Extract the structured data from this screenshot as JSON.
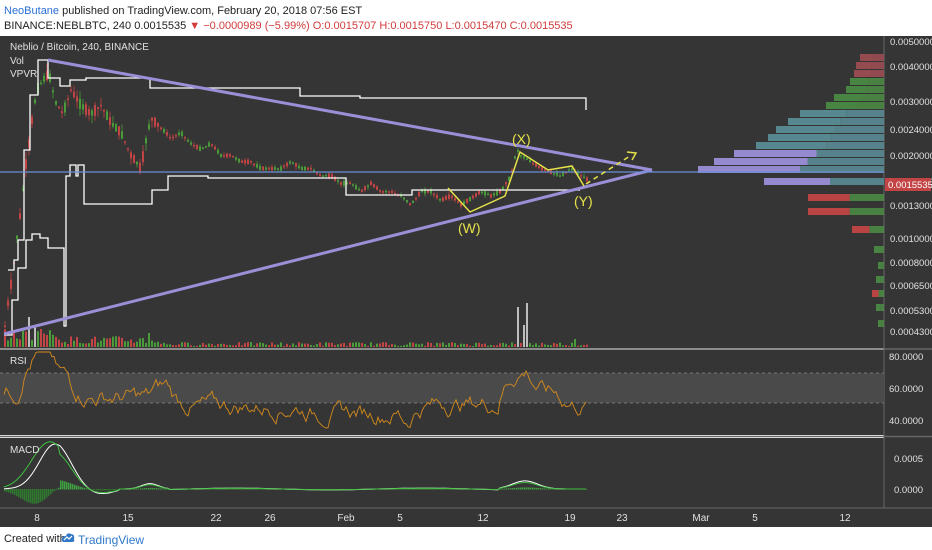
{
  "header": {
    "author": "NeoButane",
    "published": " published on TradingView.com, February 20, 2018 07:56 EST",
    "symbol": "BINANCE:NEBLBTC, 240",
    "last": "0.0015535",
    "change": "−0.0000989 (−5.99%)",
    "ohlc": "O:0.0015707 H:0.0015750 L:0.0015470 C:0.0015535"
  },
  "legend": {
    "title": "Neblio / Bitcoin, 240, BINANCE",
    "vol": "Vol",
    "vpvr": "VPVR"
  },
  "price_axis": {
    "ticks": [
      "0.0050000",
      "0.0040000",
      "0.0030000",
      "0.0024000",
      "0.0020000",
      "0.0016000",
      "0.0013000",
      "0.0010000",
      "0.0008000",
      "0.0006500",
      "0.0005300",
      "0.0004300"
    ],
    "current": "0.0015535",
    "log_scale": true
  },
  "rsi": {
    "label": "RSI",
    "ticks": [
      "80.0000",
      "60.0000",
      "40.0000"
    ],
    "band": [
      30,
      70
    ]
  },
  "macd": {
    "label": "MACD",
    "ticks": [
      "0.0005",
      "0.0000"
    ]
  },
  "time_axis": {
    "labels": [
      "8",
      "15",
      "22",
      "26",
      "Feb",
      "5",
      "12",
      "19",
      "23",
      "Mar",
      "5",
      "12"
    ]
  },
  "annotations": {
    "x": "(X)",
    "w": "(W)",
    "y": "(Y)"
  },
  "colors": {
    "background": "#353535",
    "up": "#4a9b3a",
    "down": "#c24444",
    "wedge": "#9b8fd8",
    "wave": "#e6e24a",
    "price_line": "#6b8fd8",
    "rsi": "#d28a1c",
    "macd": "#ffffff",
    "signal": "#3fc13f"
  },
  "footer": {
    "created": "Created with",
    "brand": "TradingView"
  },
  "chart_data": {
    "type": "line",
    "title": "Neblio / Bitcoin, 240, BINANCE",
    "series": [
      {
        "name": "NEBLBTC close",
        "x": [
          "Jan 5",
          "Jan 8",
          "Jan 10",
          "Jan 14",
          "Jan 17",
          "Jan 22",
          "Jan 26",
          "Feb 1",
          "Feb 5",
          "Feb 9",
          "Feb 11",
          "Feb 15",
          "Feb 17",
          "Feb 19",
          "Feb 20"
        ],
        "values": [
          0.00045,
          0.0038,
          0.0036,
          0.0021,
          0.0026,
          0.0019,
          0.0017,
          0.00155,
          0.00135,
          0.00145,
          0.0013,
          0.00195,
          0.00175,
          0.0016,
          0.0015535
        ]
      },
      {
        "name": "RSI",
        "x": [
          "Jan 5",
          "Jan 8",
          "Jan 10",
          "Jan 14",
          "Jan 17",
          "Jan 22",
          "Jan 26",
          "Feb 1",
          "Feb 5",
          "Feb 9",
          "Feb 11",
          "Feb 15",
          "Feb 17",
          "Feb 19",
          "Feb 20"
        ],
        "values": [
          58,
          85,
          78,
          55,
          52,
          48,
          46,
          45,
          39,
          49,
          45,
          70,
          58,
          51,
          46
        ]
      }
    ],
    "ylim": [
      0.0004,
      0.0052
    ],
    "yscale": "log"
  }
}
